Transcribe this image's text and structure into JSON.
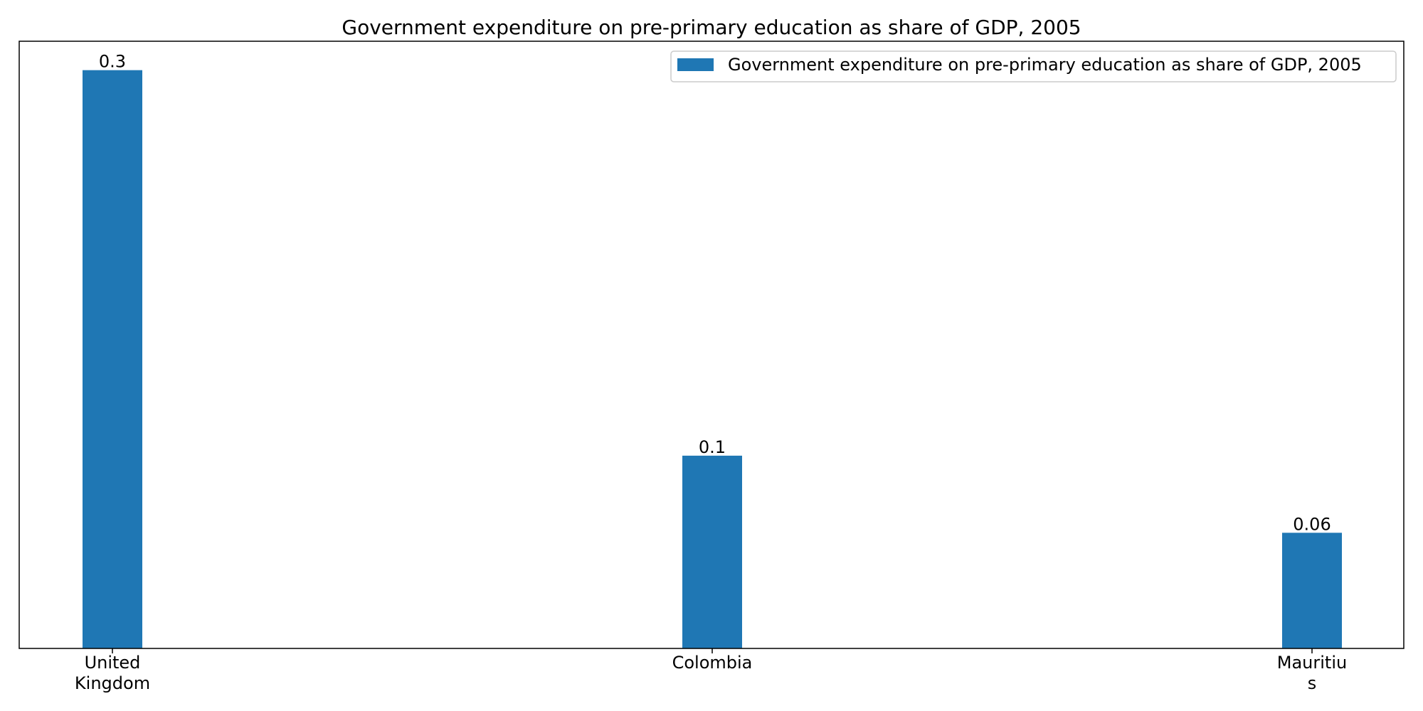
{
  "chart_data": {
    "type": "bar",
    "title": "Government expenditure on pre-primary education as share of GDP, 2005",
    "categories": [
      [
        "United",
        "Kingdom"
      ],
      [
        "Colombia"
      ],
      [
        "Mauritiu",
        "s"
      ]
    ],
    "series": [
      {
        "name": "Government expenditure on pre-primary education as share of GDP, 2005",
        "values": [
          0.3,
          0.1,
          0.06
        ],
        "labels": [
          "0.3",
          "0.1",
          "0.06"
        ],
        "color": "#1f77b4"
      }
    ],
    "xlabel": "",
    "ylabel": "",
    "ylim": [
      0,
      0.315
    ],
    "grid": false,
    "legend": "top-right"
  }
}
